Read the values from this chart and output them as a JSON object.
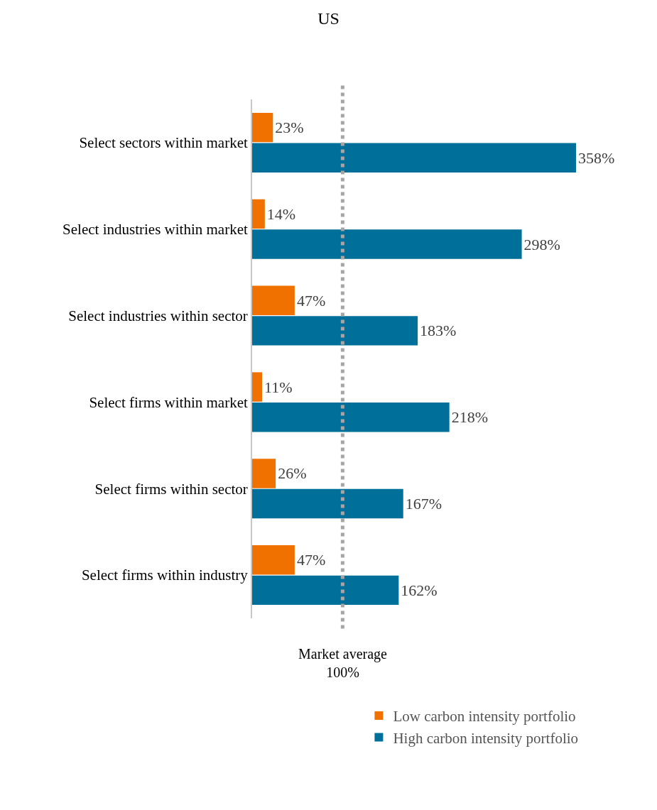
{
  "chart_data": {
    "type": "bar",
    "orientation": "horizontal",
    "title": "US",
    "categories": [
      "Select sectors within market",
      "Select industries within market",
      "Select industries within sector",
      "Select firms within market",
      "Select firms within sector",
      "Select firms within industry"
    ],
    "series": [
      {
        "name": "Low carbon intensity portfolio",
        "color": "#f07000",
        "values": [
          23,
          14,
          47,
          11,
          26,
          47
        ],
        "value_labels": [
          "23%",
          "14%",
          "47%",
          "11%",
          "26%",
          "47%"
        ]
      },
      {
        "name": "High carbon intensity portfolio",
        "color": "#00709a",
        "values": [
          358,
          298,
          183,
          218,
          167,
          162
        ],
        "value_labels": [
          "358%",
          "298%",
          "183%",
          "218%",
          "167%",
          "162%"
        ]
      }
    ],
    "ref_lines": [
      {
        "axis": "x",
        "value": 100,
        "label": "Market average\n100%",
        "color": "#a6a6a6",
        "line_style": "dotted"
      }
    ],
    "grid": false,
    "legend": "bottom"
  }
}
